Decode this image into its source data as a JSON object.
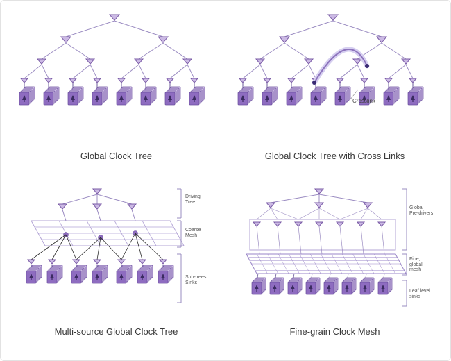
{
  "type": "infographic",
  "background_color": "#ffffff",
  "frame_border_color": "#e2e2e2",
  "caption_fontsize": 13,
  "caption_color": "#3a3a3a",
  "colors": {
    "driver_fill": "#cbb9e4",
    "driver_stroke": "#7a5ba6",
    "edge": "#9b8cc2",
    "edge_dark": "#6b5a99",
    "leaf_front": "#8e6cc0",
    "leaf_back": "#c9b7e2",
    "leaf_stroke": "#6b4f9e",
    "mesh_line": "#b3a5d6",
    "mesh_line_fine": "#9a86c8",
    "crosslink_halo": "#d6cff0",
    "crosslink_core": "#8d74bd",
    "crosslink_dot": "#3a2b73",
    "brace": "#9a8cc0",
    "label_small": "#555555"
  },
  "panels": {
    "tl": {
      "caption": "Global Clock Tree"
    },
    "tr": {
      "caption": "Global Clock Tree with Cross Links",
      "crosslink_label": "Crosslink"
    },
    "bl": {
      "caption": "Multi-source Global Clock Tree",
      "labels": {
        "driving_tree": "Driving\nTree",
        "coarse_mesh": "Coarse\nMesh",
        "subtrees": "Sub-trees,\nSinks"
      }
    },
    "br": {
      "caption": "Fine-grain Clock Mesh",
      "labels": {
        "global_predrivers": "Global\nPre-drivers",
        "fine_mesh": "Fine,\nglobal\nmesh",
        "leaf_sinks": "Leaf level\nsinks"
      }
    }
  }
}
